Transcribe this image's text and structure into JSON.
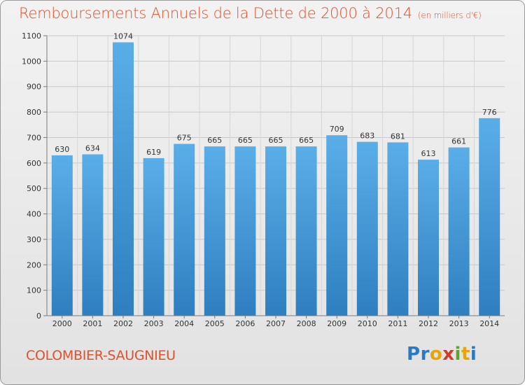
{
  "header": {
    "title": "Remboursements Annuels de la Dette de 2000 à 2014",
    "subtitle": "(en milliers d'€)"
  },
  "footer": {
    "commune": "COLOMBIER-SAUGNIEU",
    "logo_text": "Proxiti"
  },
  "colors": {
    "title": "#e0502a",
    "bar_top": "#5aaee8",
    "bar_bottom": "#2f7fc0",
    "grid": "#c8c8c8"
  },
  "chart_data": {
    "type": "bar",
    "title": "Remboursements Annuels de la Dette de 2000 à 2014",
    "subtitle": "(en milliers d'€)",
    "xlabel": "",
    "ylabel": "",
    "categories": [
      "2000",
      "2001",
      "2002",
      "2003",
      "2004",
      "2005",
      "2006",
      "2007",
      "2008",
      "2009",
      "2010",
      "2011",
      "2012",
      "2013",
      "2014"
    ],
    "values": [
      630,
      634,
      1074,
      619,
      675,
      665,
      665,
      665,
      665,
      709,
      683,
      681,
      613,
      661,
      776
    ],
    "ylim": [
      0,
      1100
    ],
    "yticks": [
      0,
      100,
      200,
      300,
      400,
      500,
      600,
      700,
      800,
      900,
      1000,
      1100
    ],
    "grid": true,
    "data_labels": true
  }
}
